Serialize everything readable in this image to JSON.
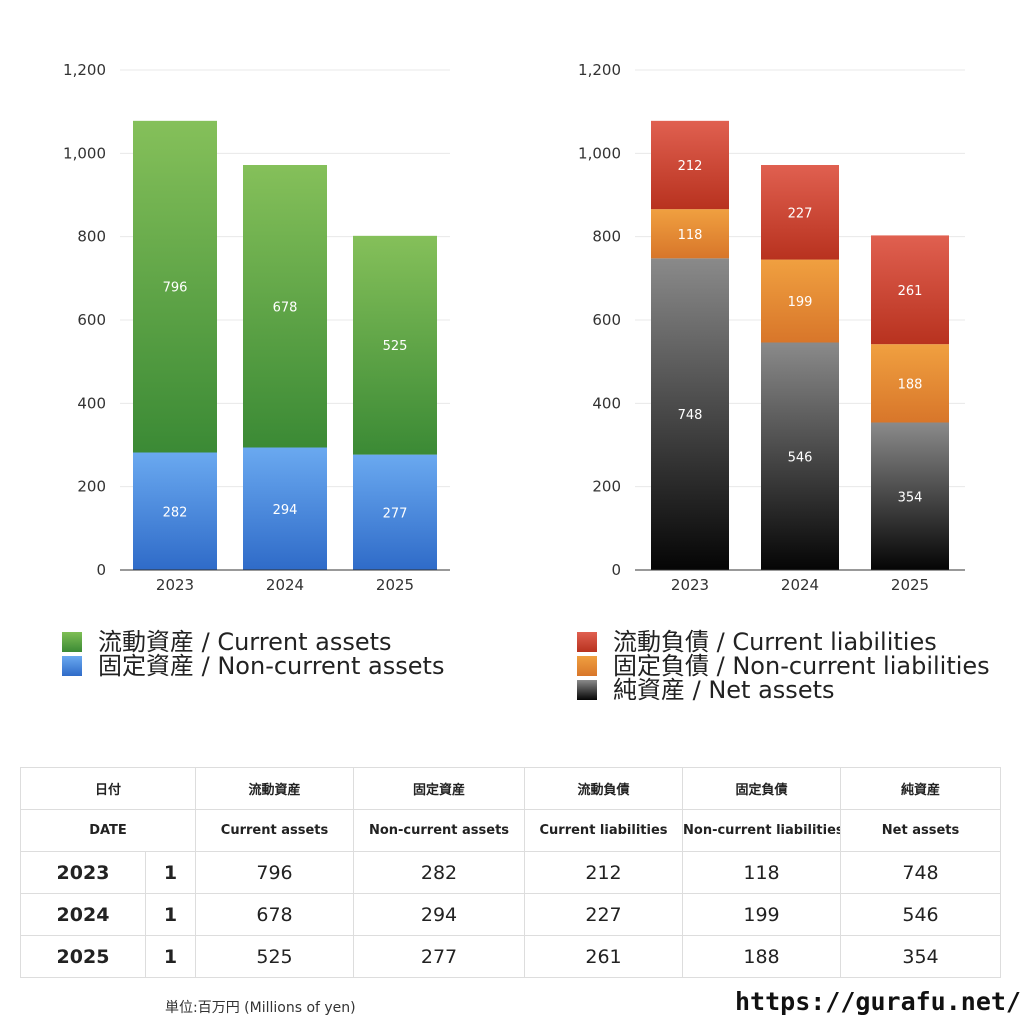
{
  "chart_data": [
    {
      "type": "bar",
      "stacked": true,
      "categories": [
        "2023",
        "2024",
        "2025"
      ],
      "ylim": [
        0,
        1200
      ],
      "yticks": [
        "0",
        "200",
        "400",
        "600",
        "800",
        "1,000",
        "1,200"
      ],
      "grid": true,
      "series": [
        {
          "name": "固定資産 / Non-current assets",
          "values": [
            282,
            294,
            277
          ],
          "color_top": "#6aa9f0",
          "color_bottom": "#2f6bc8"
        },
        {
          "name": "流動資産 / Current assets",
          "values": [
            796,
            678,
            525
          ],
          "color_top": "#85c05a",
          "color_bottom": "#3b8a35"
        }
      ],
      "legend": [
        "流動資産 / Current assets",
        "固定資産 / Non-current assets"
      ],
      "legend_placement": "bottom"
    },
    {
      "type": "bar",
      "stacked": true,
      "categories": [
        "2023",
        "2024",
        "2025"
      ],
      "ylim": [
        0,
        1200
      ],
      "yticks": [
        "0",
        "200",
        "400",
        "600",
        "800",
        "1,000",
        "1,200"
      ],
      "grid": true,
      "series": [
        {
          "name": "純資産 / Net assets",
          "values": [
            748,
            546,
            354
          ],
          "color_top": "#8a8a8a",
          "color_bottom": "#050505"
        },
        {
          "name": "固定負債 / Non-current liabilities",
          "values": [
            118,
            199,
            188
          ],
          "color_top": "#f0a040",
          "color_bottom": "#d8762a"
        },
        {
          "name": "流動負債 / Current liabilities",
          "values": [
            212,
            227,
            261
          ],
          "color_top": "#e06050",
          "color_bottom": "#b8321f"
        }
      ],
      "legend": [
        "流動負債 / Current liabilities",
        "固定負債 / Non-current liabilities",
        "純資産 / Net assets"
      ],
      "legend_placement": "bottom"
    }
  ],
  "legends": {
    "left": [
      {
        "label": "流動資産 / Current assets",
        "color": "#5aa045"
      },
      {
        "label": "固定資産 / Non-current assets",
        "color": "#4a88dc"
      }
    ],
    "right": [
      {
        "label": "流動負債 / Current liabilities",
        "color": "#c9402d"
      },
      {
        "label": "固定負債 / Non-current liabilities",
        "color": "#e58a32"
      },
      {
        "label": "純資産 / Net assets",
        "color": "#333333"
      }
    ]
  },
  "table": {
    "header_jp": [
      "日付",
      "流動資産",
      "固定資産",
      "流動負債",
      "固定負債",
      "純資産"
    ],
    "header_en": [
      "DATE",
      "Current assets",
      "Non-current assets",
      "Current liabilities",
      "Non-current liabilities",
      "Net assets"
    ],
    "rows": [
      {
        "year": "2023",
        "month": "1",
        "values": [
          "796",
          "282",
          "212",
          "118",
          "748"
        ]
      },
      {
        "year": "2024",
        "month": "1",
        "values": [
          "678",
          "294",
          "227",
          "199",
          "546"
        ]
      },
      {
        "year": "2025",
        "month": "1",
        "values": [
          "525",
          "277",
          "261",
          "188",
          "354"
        ]
      }
    ]
  },
  "footer": {
    "unit": "単位:百万円 (Millions of yen)",
    "site": "https://gurafu.net/"
  }
}
